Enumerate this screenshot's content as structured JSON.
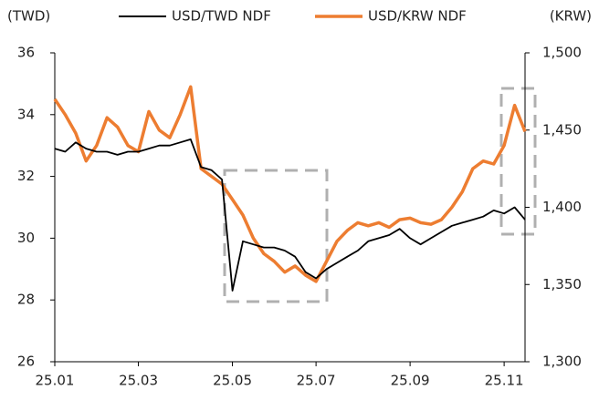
{
  "chart_data": {
    "type": "line",
    "y_label": "(TWD)",
    "y2_label": "(KRW)",
    "categories": [
      "25.01",
      null,
      null,
      null,
      null,
      null,
      null,
      null,
      "25.03",
      null,
      null,
      null,
      null,
      null,
      null,
      null,
      null,
      "25.05",
      null,
      null,
      null,
      null,
      null,
      null,
      null,
      "25.07",
      null,
      null,
      null,
      null,
      null,
      null,
      null,
      null,
      "25.09",
      null,
      null,
      null,
      null,
      null,
      null,
      null,
      null,
      "25.11",
      null,
      null
    ],
    "series": [
      {
        "name": "USD/TWD NDF",
        "color": "#000000",
        "axis": "y",
        "values": [
          32.9,
          32.8,
          33.1,
          32.9,
          32.8,
          32.8,
          32.7,
          32.8,
          32.8,
          32.9,
          33.0,
          33.0,
          33.1,
          33.2,
          32.3,
          32.2,
          31.9,
          28.3,
          29.9,
          29.8,
          29.7,
          29.7,
          29.6,
          29.4,
          28.9,
          28.7,
          29.0,
          29.2,
          29.4,
          29.6,
          29.9,
          30.0,
          30.1,
          30.3,
          30.0,
          29.8,
          30.0,
          30.2,
          30.4,
          30.5,
          30.6,
          30.7,
          30.9,
          30.8,
          31.0,
          30.6
        ]
      },
      {
        "name": "USD/KRW NDF",
        "color": "#ed7d31",
        "axis": "y2",
        "values": [
          1470,
          1460,
          1448,
          1430,
          1440,
          1458,
          1452,
          1440,
          1436,
          1462,
          1450,
          1445,
          1460,
          1478,
          1425,
          1420,
          1415,
          1405,
          1395,
          1380,
          1370,
          1365,
          1358,
          1362,
          1356,
          1352,
          1365,
          1378,
          1385,
          1390,
          1388,
          1390,
          1387,
          1392,
          1393,
          1390,
          1389,
          1392,
          1400,
          1410,
          1425,
          1430,
          1428,
          1440,
          1466,
          1449
        ]
      }
    ],
    "ylim": [
      26,
      36
    ],
    "yticks": [
      26,
      28,
      30,
      32,
      34,
      36
    ],
    "y2lim": [
      1300,
      1500
    ],
    "y2ticks": [
      {
        "value": 1300,
        "label": "1,300"
      },
      {
        "value": 1350,
        "label": "1,350"
      },
      {
        "value": 1400,
        "label": "1,400"
      },
      {
        "value": 1450,
        "label": "1,450"
      },
      {
        "value": 1500,
        "label": "1,500"
      }
    ],
    "legend": "top"
  }
}
